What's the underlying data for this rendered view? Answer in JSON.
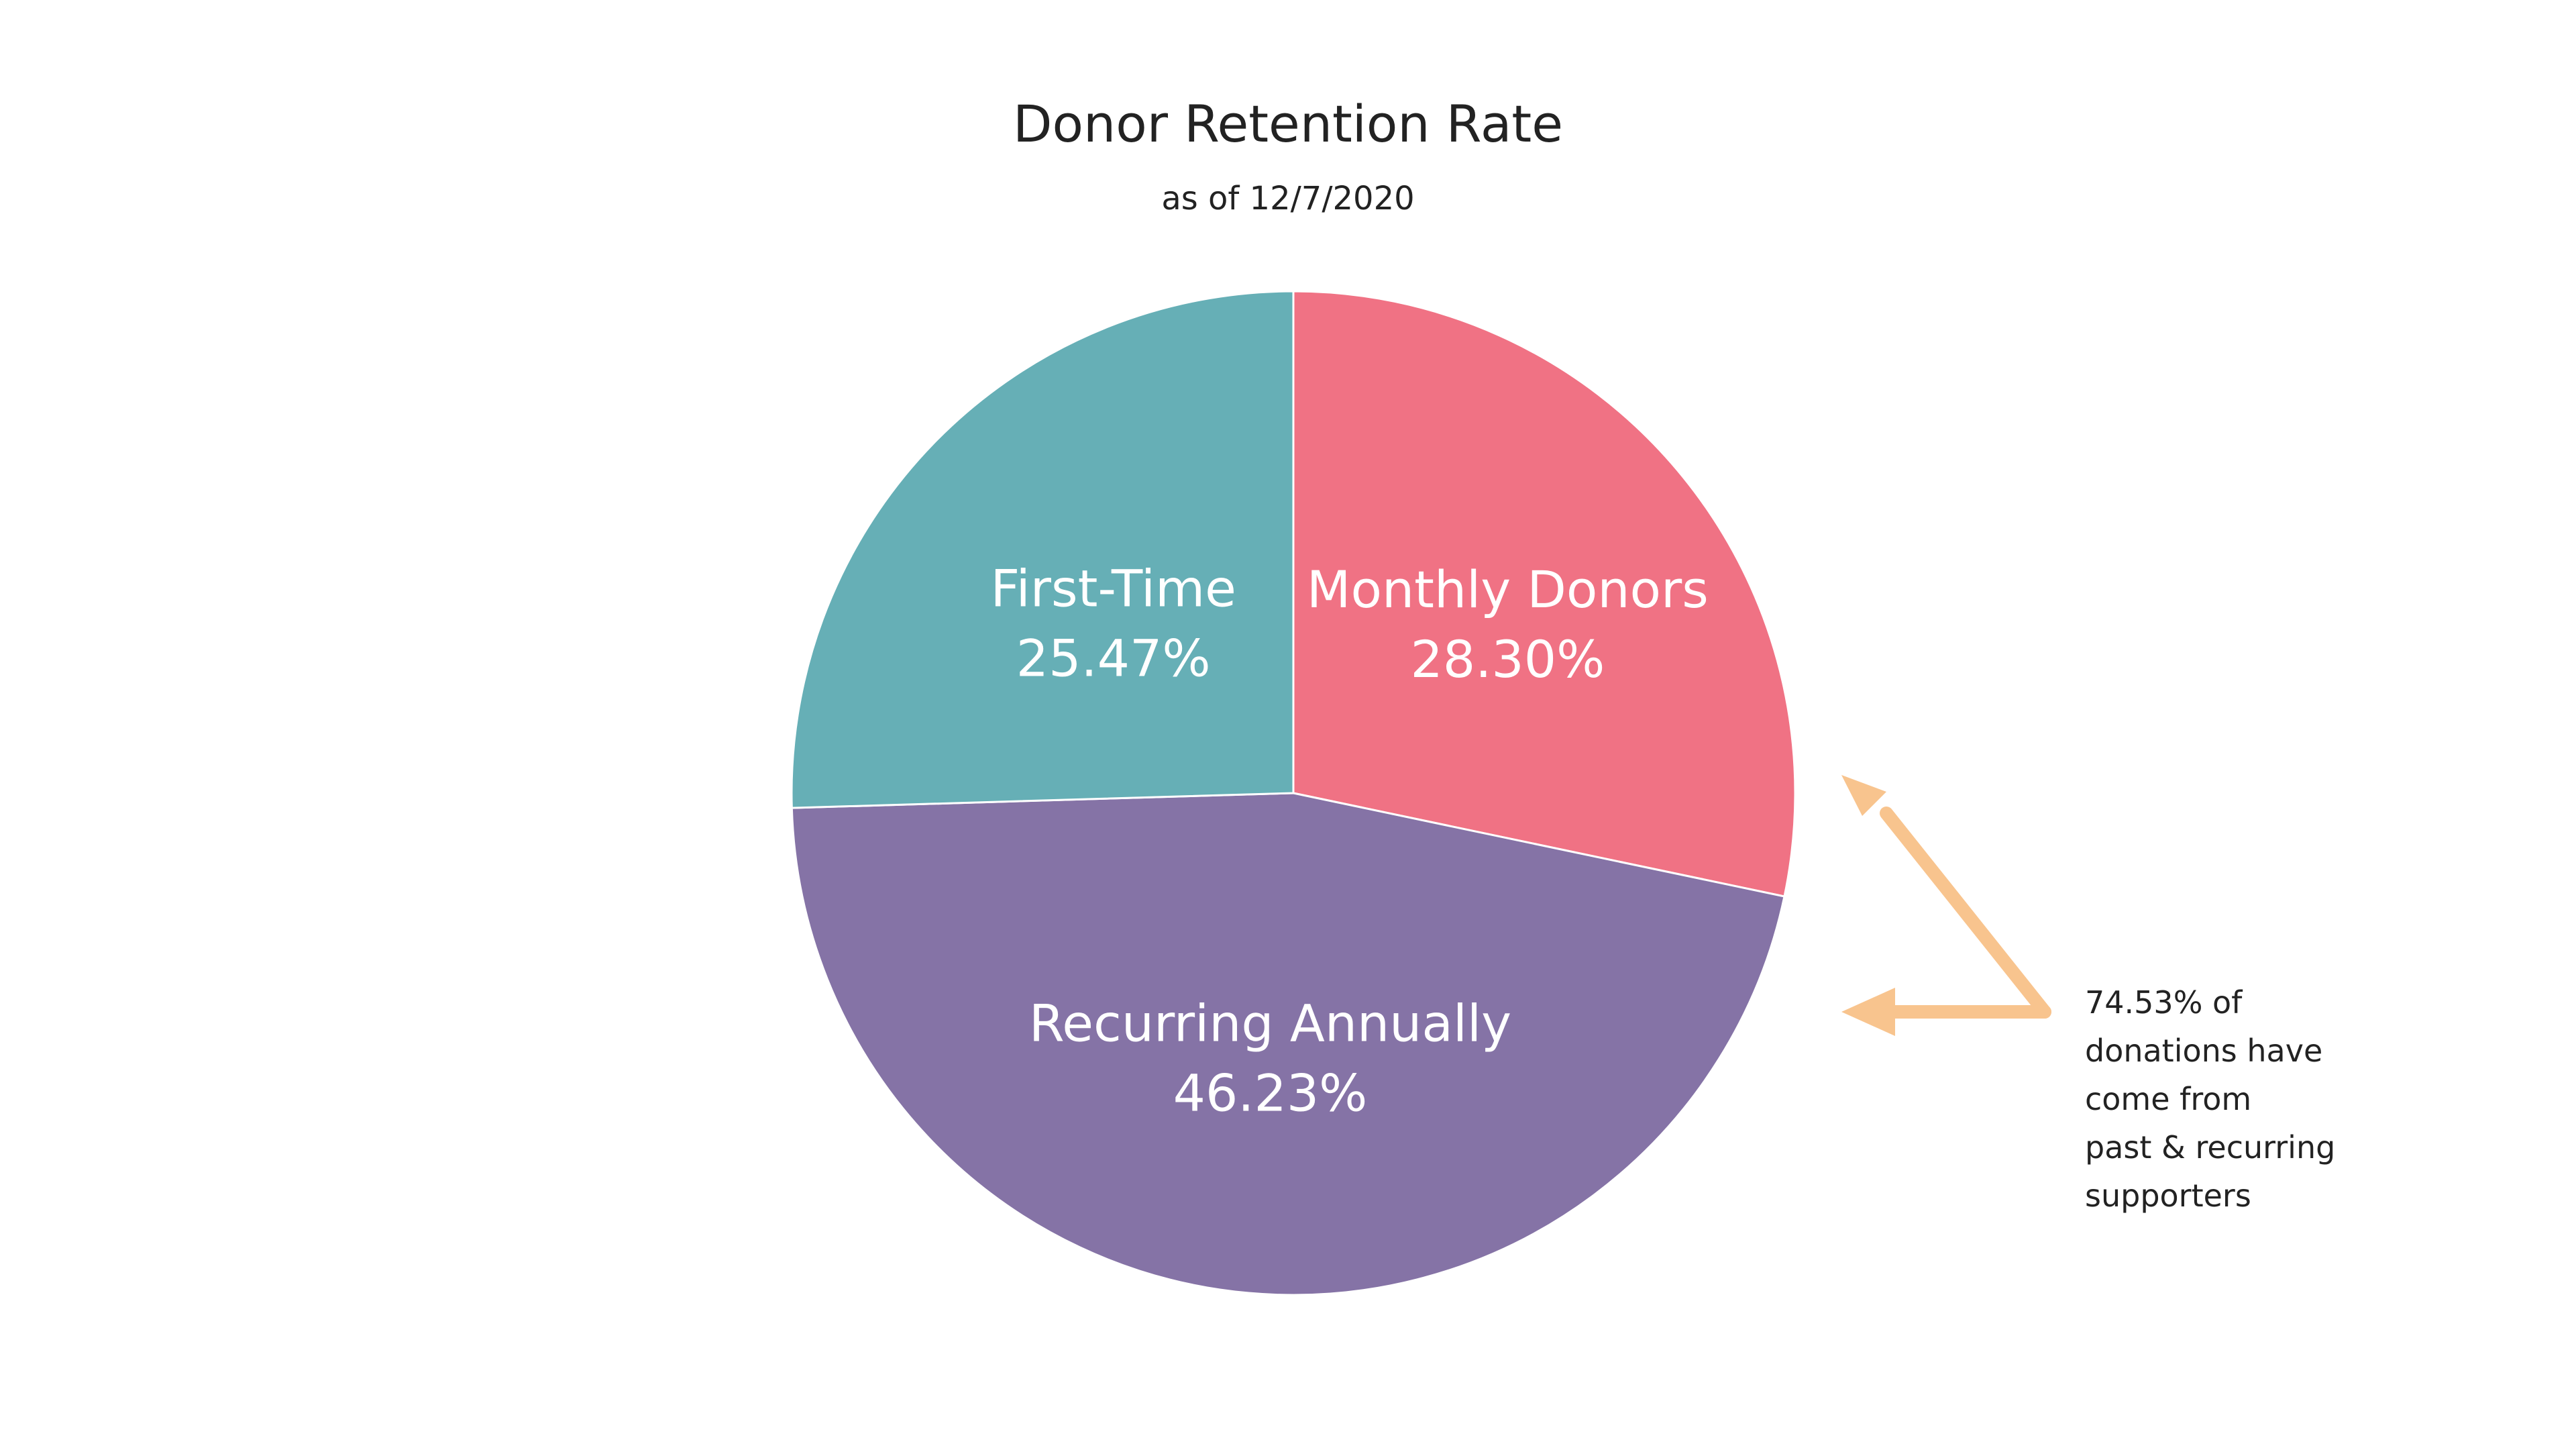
{
  "chart_data": {
    "type": "pie",
    "title": "Donor Retention Rate",
    "subtitle": "as of 12/7/2020",
    "slices": [
      {
        "name": "Monthly Donors",
        "value": 28.3,
        "label": "28.30%",
        "color": "#F07284"
      },
      {
        "name": "Recurring Annually",
        "value": 46.23,
        "label": "46.23%",
        "color": "#8573A6"
      },
      {
        "name": "First-Time",
        "value": 25.47,
        "label": "25.47%",
        "color": "#66AFB6"
      }
    ],
    "annotation": {
      "lines": [
        "74.53% of",
        "donations have",
        "come from",
        "past & recurring",
        "supporters"
      ],
      "arrow_color": "#F8C48E"
    }
  }
}
